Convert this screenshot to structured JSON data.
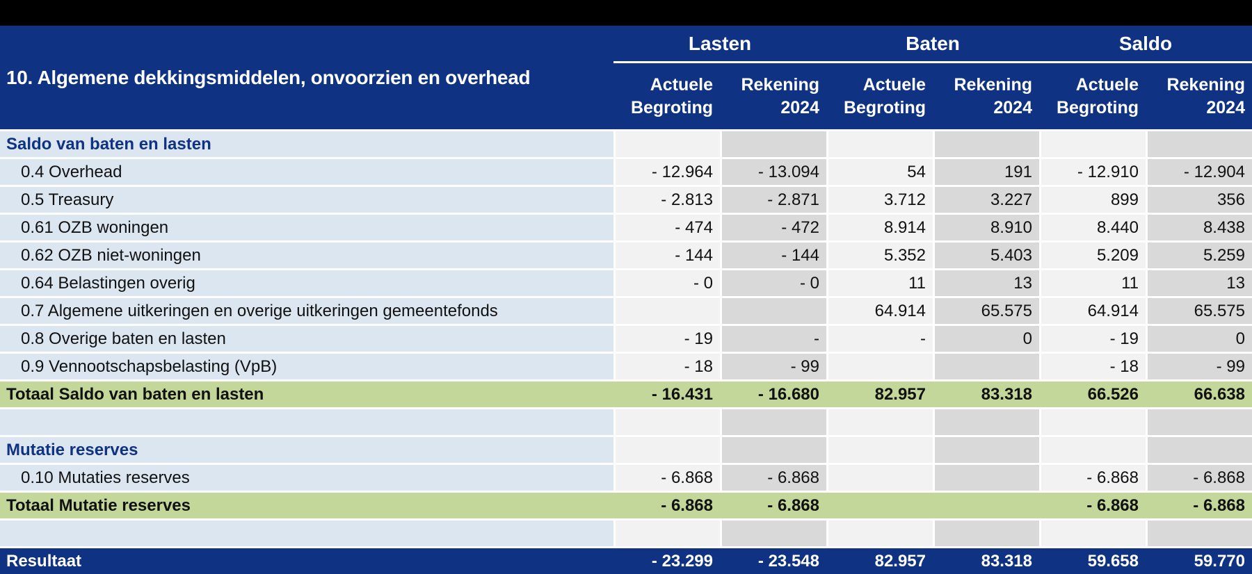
{
  "title": "10. Algemene dekkingsmiddelen, onvoorzien en overhead",
  "column_groups": [
    "Lasten",
    "Baten",
    "Saldo"
  ],
  "subcolumns": [
    {
      "line1": "Actuele",
      "line2": "Begroting"
    },
    {
      "line1": "Rekening",
      "line2": "2024"
    }
  ],
  "rows": [
    {
      "type": "section",
      "label": "Saldo van baten en lasten",
      "values": [
        "",
        "",
        "",
        "",
        "",
        ""
      ]
    },
    {
      "type": "item",
      "label": "0.4 Overhead",
      "values": [
        "- 12.964",
        "- 13.094",
        "54",
        "191",
        "- 12.910",
        "- 12.904"
      ]
    },
    {
      "type": "item",
      "label": "0.5 Treasury",
      "values": [
        "- 2.813",
        "- 2.871",
        "3.712",
        "3.227",
        "899",
        "356"
      ]
    },
    {
      "type": "item",
      "label": "0.61 OZB woningen",
      "values": [
        "- 474",
        "- 472",
        "8.914",
        "8.910",
        "8.440",
        "8.438"
      ]
    },
    {
      "type": "item",
      "label": "0.62 OZB niet-woningen",
      "values": [
        "- 144",
        "- 144",
        "5.352",
        "5.403",
        "5.209",
        "5.259"
      ]
    },
    {
      "type": "item",
      "label": "0.64 Belastingen overig",
      "values": [
        "- 0",
        "- 0",
        "11",
        "13",
        "11",
        "13"
      ]
    },
    {
      "type": "item",
      "label": "0.7 Algemene uitkeringen en overige uitkeringen gemeentefonds",
      "values": [
        "",
        "",
        "64.914",
        "65.575",
        "64.914",
        "65.575"
      ]
    },
    {
      "type": "item",
      "label": "0.8 Overige baten en lasten",
      "values": [
        "- 19",
        "-",
        "-",
        "0",
        "- 19",
        "0"
      ]
    },
    {
      "type": "item",
      "label": "0.9 Vennootschapsbelasting (VpB)",
      "values": [
        "- 18",
        "- 99",
        "",
        "",
        "- 18",
        "- 99"
      ]
    },
    {
      "type": "total",
      "label": "Totaal Saldo van baten en lasten",
      "values": [
        "- 16.431",
        "- 16.680",
        "82.957",
        "83.318",
        "66.526",
        "66.638"
      ]
    },
    {
      "type": "spacer",
      "label": "",
      "values": [
        "",
        "",
        "",
        "",
        "",
        ""
      ]
    },
    {
      "type": "section",
      "label": "Mutatie reserves",
      "values": [
        "",
        "",
        "",
        "",
        "",
        ""
      ]
    },
    {
      "type": "item",
      "label": "0.10 Mutaties reserves",
      "values": [
        "- 6.868",
        "- 6.868",
        "",
        "",
        "- 6.868",
        "- 6.868"
      ]
    },
    {
      "type": "total",
      "label": "Totaal Mutatie reserves",
      "values": [
        "- 6.868",
        "- 6.868",
        "",
        "",
        "- 6.868",
        "- 6.868"
      ]
    },
    {
      "type": "spacer",
      "label": "",
      "values": [
        "",
        "",
        "",
        "",
        "",
        ""
      ]
    },
    {
      "type": "result",
      "label": "Resultaat",
      "values": [
        "- 23.299",
        "- 23.548",
        "82.957",
        "83.318",
        "59.658",
        "59.770"
      ]
    }
  ],
  "colors": {
    "header_blue": "#0f3282",
    "label_blue": "#dce6f1",
    "col_light": "#f2f2f2",
    "col_dark": "#d9d9d9",
    "total_green": "#c4d79b",
    "top_bar": "#000000",
    "text_dark": "#111111",
    "text_white": "#ffffff"
  }
}
